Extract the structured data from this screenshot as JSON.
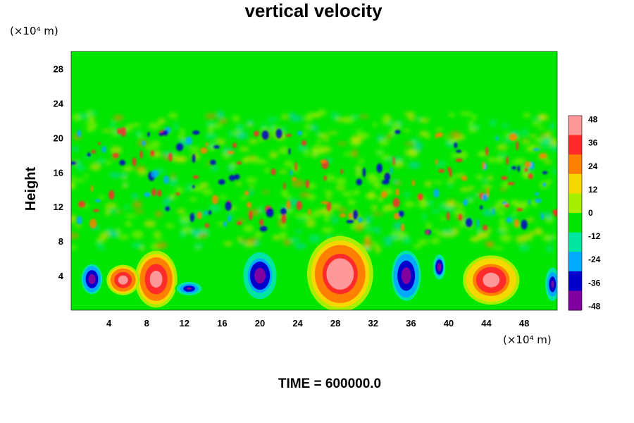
{
  "chart_data": {
    "type": "heatmap",
    "title": "vertical velocity",
    "xlabel": "",
    "ylabel": "Height",
    "x_unit_label": "(×10⁴ m)",
    "y_unit_label": "(×10⁴ m)",
    "xlim": [
      0,
      51.5
    ],
    "ylim": [
      0,
      30
    ],
    "x_ticks": [
      4,
      8,
      12,
      16,
      20,
      24,
      28,
      32,
      36,
      40,
      44,
      48
    ],
    "y_ticks": [
      4,
      8,
      12,
      16,
      20,
      24,
      28
    ],
    "colorbar": {
      "range": [
        -50,
        50
      ],
      "ticks": [
        48,
        36,
        24,
        12,
        0,
        -12,
        -24,
        -36,
        -48
      ],
      "colors": [
        "#ff9999",
        "#ff2a2a",
        "#ff8000",
        "#f5d800",
        "#a8ee00",
        "#00e600",
        "#00e6a0",
        "#00aaff",
        "#0000cc",
        "#8000a0"
      ]
    },
    "features": [
      {
        "x": 28.5,
        "y": 4.2,
        "rx": 2.8,
        "ry": 4.0,
        "value": 55
      },
      {
        "x": 9.0,
        "y": 3.6,
        "rx": 1.8,
        "ry": 3.0,
        "value": 52
      },
      {
        "x": 44.5,
        "y": 3.5,
        "rx": 2.4,
        "ry": 2.6,
        "value": 48
      },
      {
        "x": 5.5,
        "y": 3.5,
        "rx": 1.4,
        "ry": 1.6,
        "value": 50
      },
      {
        "x": 2.2,
        "y": 3.6,
        "rx": 1.0,
        "ry": 1.8,
        "value": -50
      },
      {
        "x": 12.5,
        "y": 2.5,
        "rx": 1.2,
        "ry": 0.8,
        "value": -44
      },
      {
        "x": 20.0,
        "y": 4.0,
        "rx": 1.6,
        "ry": 2.8,
        "value": -48
      },
      {
        "x": 35.5,
        "y": 4.0,
        "rx": 1.4,
        "ry": 3.0,
        "value": -50
      },
      {
        "x": 39.0,
        "y": 5.0,
        "rx": 0.6,
        "ry": 1.5,
        "value": -48
      },
      {
        "x": 51.0,
        "y": 3.0,
        "rx": 0.7,
        "ry": 2.0,
        "value": -45
      }
    ]
  },
  "footer": {
    "time_label": "TIME = 600000.0"
  }
}
